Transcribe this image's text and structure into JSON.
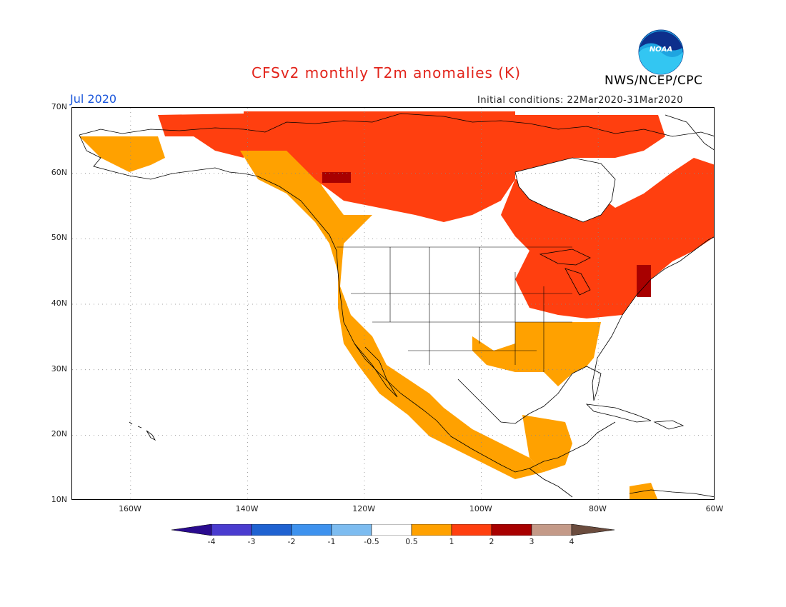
{
  "header": {
    "title": "CFSv2 monthly T2m anomalies (K)",
    "agency": "NWS/NCEP/CPC",
    "month": "Jul 2020",
    "initial_conditions": "Initial conditions: 22Mar2020-31Mar2020",
    "logo_text": "NOAA"
  },
  "map": {
    "lat_labels": [
      "70N",
      "60N",
      "50N",
      "40N",
      "30N",
      "20N",
      "10N"
    ],
    "lon_labels": [
      "160W",
      "140W",
      "120W",
      "100W",
      "80W",
      "60W"
    ],
    "colors": {
      "above_1": "#ff3f0f",
      "half_to_1": "#ffa100",
      "above_2": "#a80000",
      "near_normal": "#ffffff"
    }
  },
  "colorbar": {
    "labels": [
      "-4",
      "-3",
      "-2",
      "-1",
      "-0.5",
      "0.5",
      "1",
      "2",
      "3",
      "4"
    ],
    "colors": [
      "#2a0b8f",
      "#4a3ccf",
      "#1f62d1",
      "#3e92ee",
      "#7dbcf0",
      "#ffffff",
      "#ffa100",
      "#ff3f0f",
      "#a80000",
      "#c49a88",
      "#6b4c3e"
    ]
  }
}
